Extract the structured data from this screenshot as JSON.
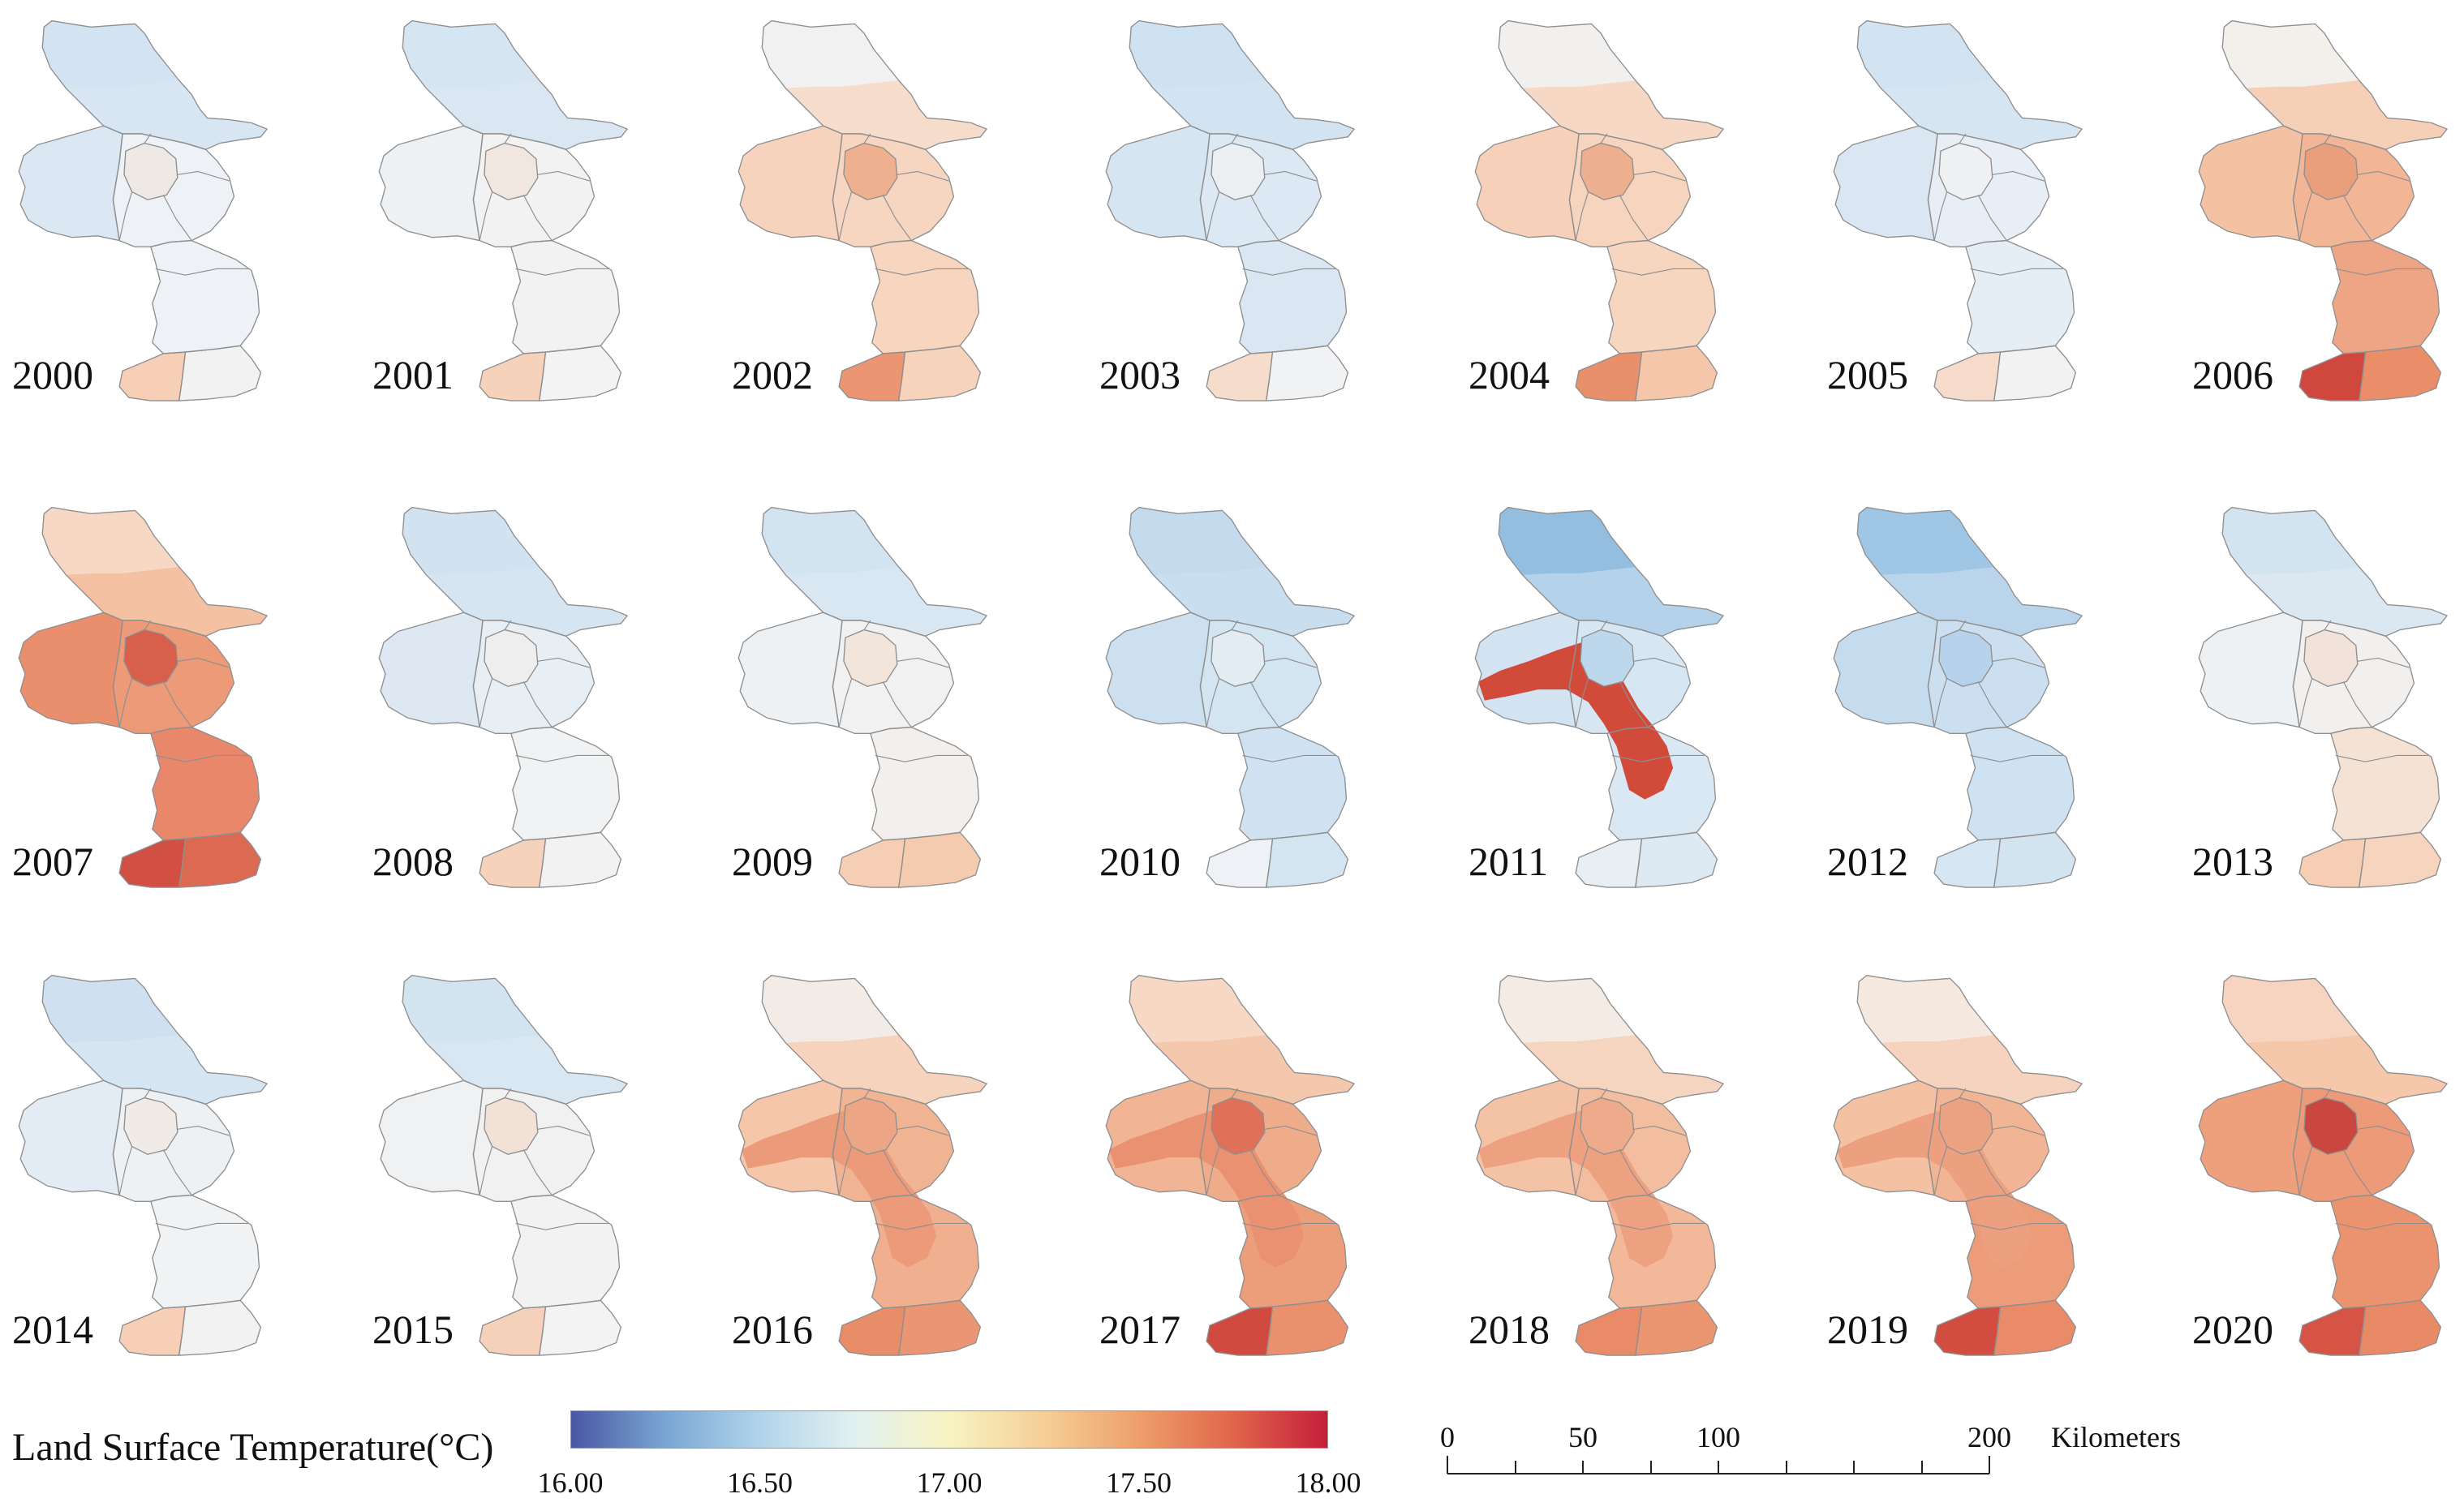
{
  "colors": {
    "boundary": "#8f8f8f",
    "text": "#111111",
    "scale_bar": "#222222"
  },
  "maps": [
    {
      "year": "2000",
      "fills": {
        "n": "#d7e6f2",
        "nt": "#d3e3f1",
        "mw": "#dbe8f3",
        "me": "#eef1f5",
        "s": "#eef2f6",
        "tw": "#f6cfb6",
        "te": "#f2f2f2",
        "core": "#efe9e6"
      }
    },
    {
      "year": "2001",
      "fills": {
        "n": "#dae7f2",
        "nt": "#d6e5f2",
        "mw": "#eef1f4",
        "me": "#f2f2f3",
        "s": "#f2f2f2",
        "tw": "#f7d2ba",
        "te": "#f3f3f3",
        "core": "#f2e7e0"
      }
    },
    {
      "year": "2002",
      "fills": {
        "n": "#f6dcca",
        "nt": "#f1f1f2",
        "mw": "#f7d3bd",
        "me": "#f7d6c1",
        "s": "#f8d5bf",
        "tw": "#eb9572",
        "te": "#f7d3bb",
        "core": "#efb090"
      }
    },
    {
      "year": "2003",
      "fills": {
        "n": "#d2e3f1",
        "nt": "#cfe2f1",
        "mw": "#d6e5f2",
        "me": "#dce8f3",
        "s": "#dae7f2",
        "tw": "#f6dccb",
        "te": "#f1f2f4",
        "core": "#eceff2"
      }
    },
    {
      "year": "2004",
      "fills": {
        "n": "#f6d8c4",
        "nt": "#f2f0ee",
        "mw": "#f6d0b8",
        "me": "#f7d4be",
        "s": "#f7d6c0",
        "tw": "#e98f6b",
        "te": "#f5c6a9",
        "core": "#eeaf8e"
      }
    },
    {
      "year": "2005",
      "fills": {
        "n": "#d5e5f2",
        "nt": "#d2e3f1",
        "mw": "#dae7f2",
        "me": "#e8eef5",
        "s": "#e5edf5",
        "tw": "#f7dbca",
        "te": "#f2f2f2",
        "core": "#eff0f1"
      }
    },
    {
      "year": "2006",
      "fills": {
        "n": "#f5cfb6",
        "nt": "#f3efeb",
        "mw": "#f4c2a3",
        "me": "#f2b595",
        "s": "#eea585",
        "tw": "#cf473d",
        "te": "#ea8e69",
        "core": "#e99e7c"
      }
    },
    {
      "year": "2007",
      "fills": {
        "n": "#f4c1a3",
        "nt": "#f7d8c4",
        "mw": "#ea8f6d",
        "me": "#ec9a77",
        "s": "#e8876a",
        "tw": "#d24f43",
        "te": "#dc6a53",
        "core": "#d75f4b"
      }
    },
    {
      "year": "2008",
      "fills": {
        "n": "#d5e5f2",
        "nt": "#d1e3f1",
        "mw": "#dde8f3",
        "me": "#e7eef4",
        "s": "#f1f2f3",
        "tw": "#f6d2ba",
        "te": "#f2f2f2",
        "core": "#eeeeef"
      }
    },
    {
      "year": "2009",
      "fills": {
        "n": "#d8e7f2",
        "nt": "#d3e4f1",
        "mw": "#edf1f4",
        "me": "#f1f1f2",
        "s": "#f2efec",
        "tw": "#f6ceb4",
        "te": "#f5cbb0",
        "core": "#f2e5dc"
      }
    },
    {
      "year": "2010",
      "fills": {
        "n": "#c9deef",
        "nt": "#c4dbee",
        "mw": "#cde0f0",
        "me": "#d4e5f2",
        "s": "#d0e2f1",
        "tw": "#eef2f6",
        "te": "#d4e5f2",
        "core": "#e3ebf3"
      }
    },
    {
      "year": "2011",
      "fills": {
        "n": "#b4d2e9",
        "nt": "#93bee0",
        "mw": "#d2e3f1",
        "me": "#d6e6f2",
        "s": "#dae8f3",
        "tw": "#e7eff5",
        "te": "#dde9f3",
        "belt": "#d24a3a",
        "core": "#bdd7ec"
      }
    },
    {
      "year": "2012",
      "fills": {
        "n": "#bad5eb",
        "nt": "#9fc6e4",
        "mw": "#c5dcef",
        "me": "#cbdff0",
        "s": "#cfe2f1",
        "tw": "#d6e6f2",
        "te": "#d3e4f1",
        "core": "#b7d3eb"
      }
    },
    {
      "year": "2013",
      "fills": {
        "n": "#dbe8f2",
        "nt": "#d3e4f1",
        "mw": "#eef1f4",
        "me": "#f2f0ef",
        "s": "#f4e2d5",
        "tw": "#f6ceb4",
        "te": "#f6d4be",
        "core": "#f1e3d9"
      }
    },
    {
      "year": "2014",
      "fills": {
        "n": "#d6e5f2",
        "nt": "#cfe1f0",
        "mw": "#e3ecf4",
        "me": "#eef1f4",
        "s": "#f1f2f3",
        "tw": "#f6cfb6",
        "te": "#f2f2f2",
        "core": "#f1ebe7"
      }
    },
    {
      "year": "2015",
      "fills": {
        "n": "#d9e7f2",
        "nt": "#d3e4f1",
        "mw": "#f0f1f3",
        "me": "#f2f1f1",
        "s": "#f2f2f2",
        "tw": "#f6d1b9",
        "te": "#f3f3f3",
        "core": "#f2e1d6"
      }
    },
    {
      "year": "2016",
      "fills": {
        "n": "#f6d3bd",
        "nt": "#f3ebe5",
        "mw": "#f5c6aa",
        "me": "#f1b493",
        "s": "#f0b08f",
        "tw": "#e98c68",
        "te": "#eb9672",
        "belt": "#eb9b79",
        "core": "#eca685"
      }
    },
    {
      "year": "2017",
      "fills": {
        "n": "#f4c8ad",
        "nt": "#f6d8c4",
        "mw": "#f1b596",
        "me": "#efac8b",
        "s": "#ec9d7a",
        "tw": "#d14a3f",
        "te": "#ea906c",
        "belt": "#e99170",
        "core": "#de7157"
      }
    },
    {
      "year": "2018",
      "fills": {
        "n": "#f6d5c0",
        "nt": "#f4ebe4",
        "mw": "#f4c3a5",
        "me": "#f3bea0",
        "s": "#f2b899",
        "tw": "#e98b67",
        "te": "#eb9571",
        "belt": "#eea181",
        "core": "#eeab8b"
      }
    },
    {
      "year": "2019",
      "fills": {
        "n": "#f6d3be",
        "nt": "#f5e8df",
        "mw": "#f4c1a3",
        "me": "#f1b596",
        "s": "#ec9c79",
        "tw": "#d24d3f",
        "te": "#e98b68",
        "belt": "#eda080",
        "core": "#eba282"
      }
    },
    {
      "year": "2020",
      "fills": {
        "n": "#f5c8ac",
        "nt": "#f6d4bf",
        "mw": "#ee9f7c",
        "me": "#ec9a77",
        "s": "#eb936f",
        "tw": "#d55446",
        "te": "#e98a66",
        "core": "#c9473f"
      }
    }
  ],
  "legend": {
    "title": "Land Surface Temperature(°C)",
    "colorbar": {
      "min": 16.0,
      "max": 18.0,
      "stops": [
        {
          "value": 16.0,
          "color": "#4a57a3"
        },
        {
          "value": 16.25,
          "color": "#7aa6d3"
        },
        {
          "value": 16.5,
          "color": "#b1d4ea"
        },
        {
          "value": 16.75,
          "color": "#e2f1f0"
        },
        {
          "value": 17.0,
          "color": "#f7f3c2"
        },
        {
          "value": 17.25,
          "color": "#f5cf97"
        },
        {
          "value": 17.5,
          "color": "#ee9f6b"
        },
        {
          "value": 17.75,
          "color": "#e0654b"
        },
        {
          "value": 18.0,
          "color": "#c41f3a"
        }
      ]
    },
    "ticks": [
      {
        "value": 16.0,
        "label": "16.00"
      },
      {
        "value": 16.5,
        "label": "16.50"
      },
      {
        "value": 17.0,
        "label": "17.00"
      },
      {
        "value": 17.5,
        "label": "17.50"
      },
      {
        "value": 18.0,
        "label": "18.00"
      }
    ]
  },
  "scale_bar": {
    "unit": "Kilometers",
    "max": 200,
    "tick_step": 25,
    "labels": [
      {
        "value": 0,
        "label": "0"
      },
      {
        "value": 50,
        "label": "50"
      },
      {
        "value": 100,
        "label": "100"
      },
      {
        "value": 200,
        "label": "200"
      }
    ]
  }
}
